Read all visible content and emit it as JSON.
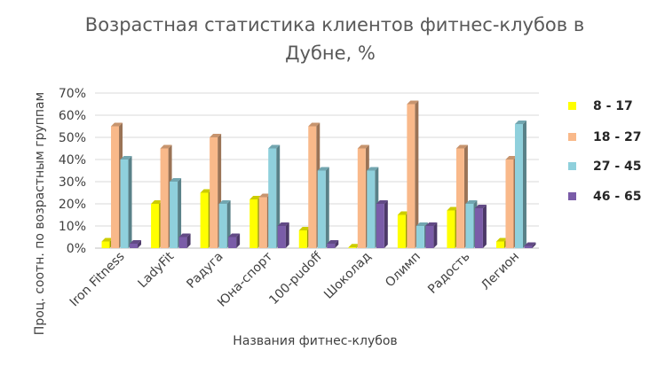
{
  "chart_data": {
    "type": "bar",
    "title_line1": "Возрастная статистика клиентов фитнес-клубов в",
    "title_line2": "Дубне, %",
    "xlabel": "Названия фитнес-клубов",
    "ylabel": "Проц. соотн. по возрастным группам",
    "ylim": [
      0,
      70
    ],
    "yticks": [
      "0%",
      "10%",
      "20%",
      "30%",
      "40%",
      "50%",
      "60%",
      "70%"
    ],
    "grid": true,
    "legend_position": "right",
    "categories": [
      "Iron Fitness",
      "LadyFit",
      "Радуга",
      "Юна-спорт",
      "100-pudoff",
      "Шоколад",
      "Олимп",
      "Радость",
      "Легион"
    ],
    "series": [
      {
        "name": "8 - 17",
        "color": "#FFFF00",
        "values": [
          3,
          20,
          25,
          22,
          8,
          0,
          15,
          17,
          3
        ]
      },
      {
        "name": "18 - 27",
        "color": "#F9B98A",
        "values": [
          55,
          45,
          50,
          23,
          55,
          45,
          65,
          45,
          40
        ]
      },
      {
        "name": "27 - 45",
        "color": "#8FD0DC",
        "values": [
          40,
          30,
          20,
          45,
          35,
          35,
          10,
          20,
          56
        ]
      },
      {
        "name": "46 - 65",
        "color": "#7A5CA8",
        "values": [
          2,
          5,
          5,
          10,
          2,
          20,
          10,
          18,
          1
        ]
      }
    ]
  }
}
